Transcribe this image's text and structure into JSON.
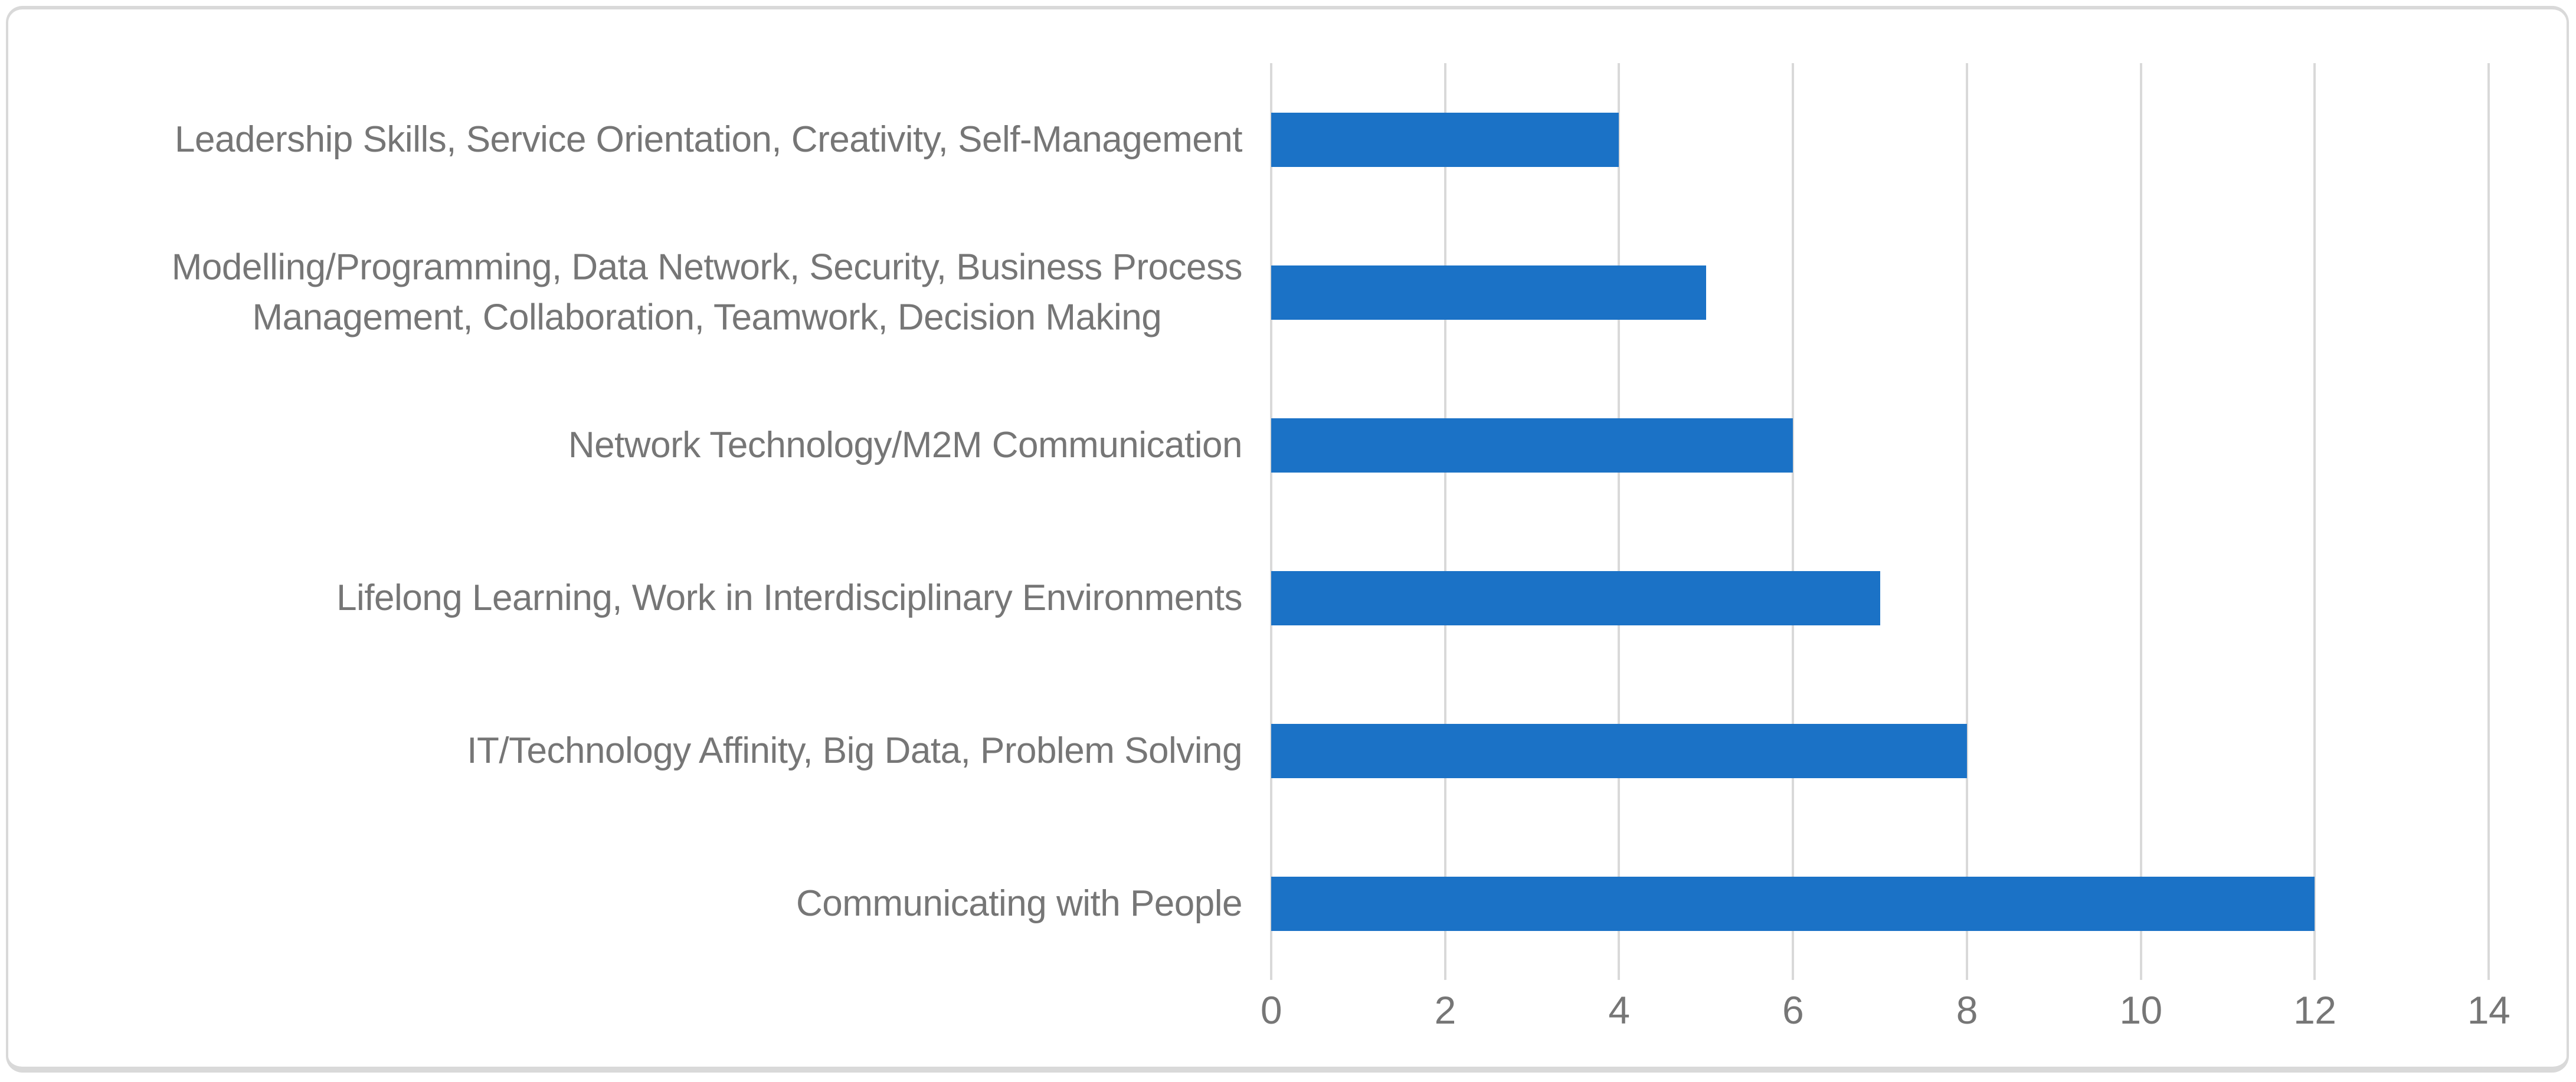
{
  "chart_data": {
    "type": "bar",
    "orientation": "horizontal",
    "title": "",
    "xlabel": "",
    "ylabel": "",
    "categories": [
      "Leadership Skills, Service Orientation, Creativity, Self-Management",
      "Modelling/Programming, Data Network, Security, Business Process\nManagement, Collaboration, Teamwork, Decision Making",
      "Network Technology/M2M Communication",
      "Lifelong Learning, Work in Interdisciplinary Environments",
      "IT/Technology Affinity, Big Data, Problem Solving",
      "Communicating with People"
    ],
    "values": [
      4,
      5,
      6,
      7,
      8,
      12
    ],
    "xlim": [
      0,
      14
    ],
    "xticks": [
      "0",
      "2",
      "4",
      "6",
      "8",
      "10",
      "12",
      "14"
    ],
    "grid": "vertical-gridlines-on",
    "legend": "none",
    "colors": {
      "bar": "#1B72C6",
      "gridline": "#D9D9D9",
      "frame_border": "#D9D9D9",
      "axis_text": "#767676",
      "background": "#FFFFFF"
    }
  }
}
